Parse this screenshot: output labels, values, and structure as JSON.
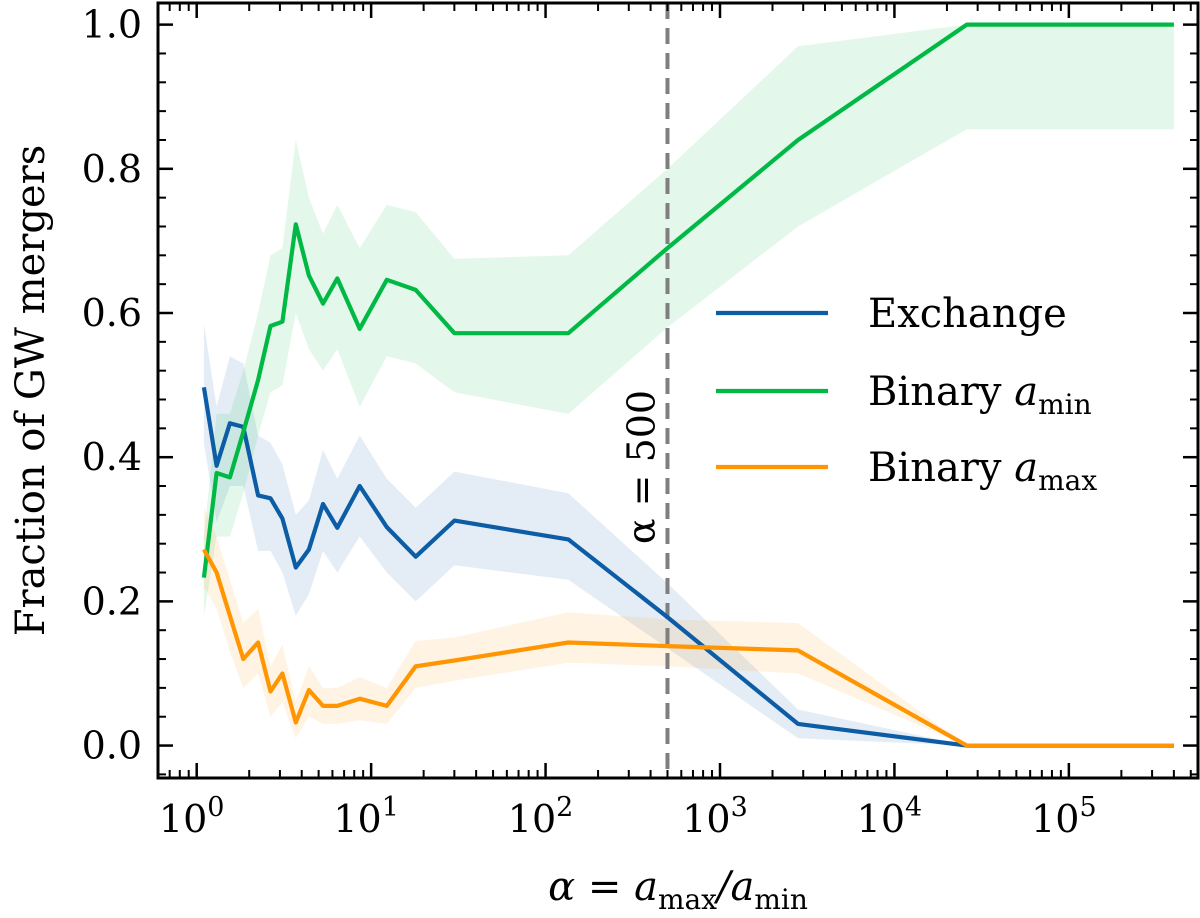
{
  "chart_data": {
    "type": "line",
    "title": "",
    "xlabel": "α = a_max/a_min",
    "xlabel_parts": {
      "pre": "α = a",
      "sub1": "max",
      "mid": "/a",
      "sub2": "min"
    },
    "ylabel": "Fraction of GW mergers",
    "xscale": "log",
    "xlim": [
      0.6,
      550000
    ],
    "ylim": [
      -0.045,
      1.03
    ],
    "grid": false,
    "legend_position": "center-right",
    "x_ticks": [
      {
        "value": 1,
        "base": "10",
        "exp": "0"
      },
      {
        "value": 10,
        "base": "10",
        "exp": "1"
      },
      {
        "value": 100,
        "base": "10",
        "exp": "2"
      },
      {
        "value": 1000,
        "base": "10",
        "exp": "3"
      },
      {
        "value": 10000,
        "base": "10",
        "exp": "4"
      },
      {
        "value": 100000,
        "base": "10",
        "exp": "5"
      }
    ],
    "y_ticks": [
      {
        "value": 0.0,
        "label": "0.0"
      },
      {
        "value": 0.2,
        "label": "0.2"
      },
      {
        "value": 0.4,
        "label": "0.4"
      },
      {
        "value": 0.6,
        "label": "0.6"
      },
      {
        "value": 0.8,
        "label": "0.8"
      },
      {
        "value": 1.0,
        "label": "1.0"
      }
    ],
    "vline": {
      "x": 500,
      "label": "α = 500",
      "color": "#7f7f7f"
    },
    "series": [
      {
        "name": "Exchange",
        "legend_label": "Exchange",
        "color": "#0c5da5",
        "x": [
          1.1,
          1.3,
          1.55,
          1.85,
          2.25,
          2.65,
          3.1,
          3.7,
          4.4,
          5.3,
          6.4,
          8.6,
          12.3,
          18,
          30,
          135,
          500,
          2800,
          26000,
          400000
        ],
        "y": [
          0.497,
          0.388,
          0.447,
          0.442,
          0.347,
          0.343,
          0.315,
          0.247,
          0.272,
          0.335,
          0.302,
          0.36,
          0.303,
          0.262,
          0.312,
          0.286,
          0.178,
          0.03,
          0.0,
          0.0
        ],
        "lower": [
          0.42,
          0.31,
          0.36,
          0.36,
          0.27,
          0.27,
          0.24,
          0.18,
          0.21,
          0.27,
          0.24,
          0.29,
          0.24,
          0.2,
          0.25,
          0.23,
          0.135,
          0.01,
          0.0,
          0.0
        ],
        "upper": [
          0.585,
          0.47,
          0.54,
          0.53,
          0.43,
          0.42,
          0.39,
          0.32,
          0.34,
          0.41,
          0.37,
          0.43,
          0.37,
          0.33,
          0.38,
          0.35,
          0.225,
          0.05,
          0.0,
          0.0
        ]
      },
      {
        "name": "Binary a_min",
        "legend_label": "Binary a",
        "legend_sub": "min",
        "color": "#00b945",
        "x": [
          1.1,
          1.3,
          1.55,
          1.85,
          2.25,
          2.65,
          3.1,
          3.7,
          4.4,
          5.3,
          6.4,
          8.6,
          12.3,
          18,
          30,
          135,
          500,
          2800,
          26000,
          400000
        ],
        "y": [
          0.233,
          0.378,
          0.372,
          0.435,
          0.507,
          0.582,
          0.588,
          0.723,
          0.652,
          0.613,
          0.648,
          0.578,
          0.646,
          0.632,
          0.572,
          0.572,
          0.69,
          0.84,
          1.0,
          1.0
        ],
        "lower": [
          0.18,
          0.29,
          0.29,
          0.35,
          0.43,
          0.49,
          0.5,
          0.6,
          0.55,
          0.52,
          0.55,
          0.47,
          0.54,
          0.53,
          0.49,
          0.46,
          0.58,
          0.72,
          0.855,
          0.855
        ],
        "upper": [
          0.29,
          0.46,
          0.46,
          0.52,
          0.6,
          0.68,
          0.69,
          0.84,
          0.76,
          0.71,
          0.75,
          0.69,
          0.75,
          0.74,
          0.675,
          0.68,
          0.8,
          0.97,
          1.0,
          1.0
        ]
      },
      {
        "name": "Binary a_max",
        "legend_label": "Binary a",
        "legend_sub": "max",
        "color": "#ff9500",
        "x": [
          1.1,
          1.3,
          1.55,
          1.85,
          2.25,
          2.65,
          3.1,
          3.7,
          4.4,
          5.3,
          6.4,
          8.6,
          12.3,
          18,
          30,
          135,
          500,
          2800,
          26000,
          400000
        ],
        "y": [
          0.272,
          0.24,
          0.18,
          0.12,
          0.143,
          0.075,
          0.1,
          0.032,
          0.077,
          0.055,
          0.055,
          0.065,
          0.055,
          0.11,
          0.118,
          0.143,
          0.138,
          0.132,
          0.0,
          0.0
        ],
        "lower": [
          0.22,
          0.19,
          0.13,
          0.08,
          0.1,
          0.04,
          0.06,
          0.01,
          0.04,
          0.03,
          0.03,
          0.035,
          0.03,
          0.08,
          0.09,
          0.115,
          0.11,
          0.1,
          0.0,
          0.0
        ],
        "upper": [
          0.33,
          0.29,
          0.23,
          0.17,
          0.19,
          0.11,
          0.14,
          0.06,
          0.11,
          0.08,
          0.08,
          0.095,
          0.08,
          0.145,
          0.15,
          0.185,
          0.175,
          0.17,
          0.0,
          0.0
        ]
      }
    ]
  }
}
